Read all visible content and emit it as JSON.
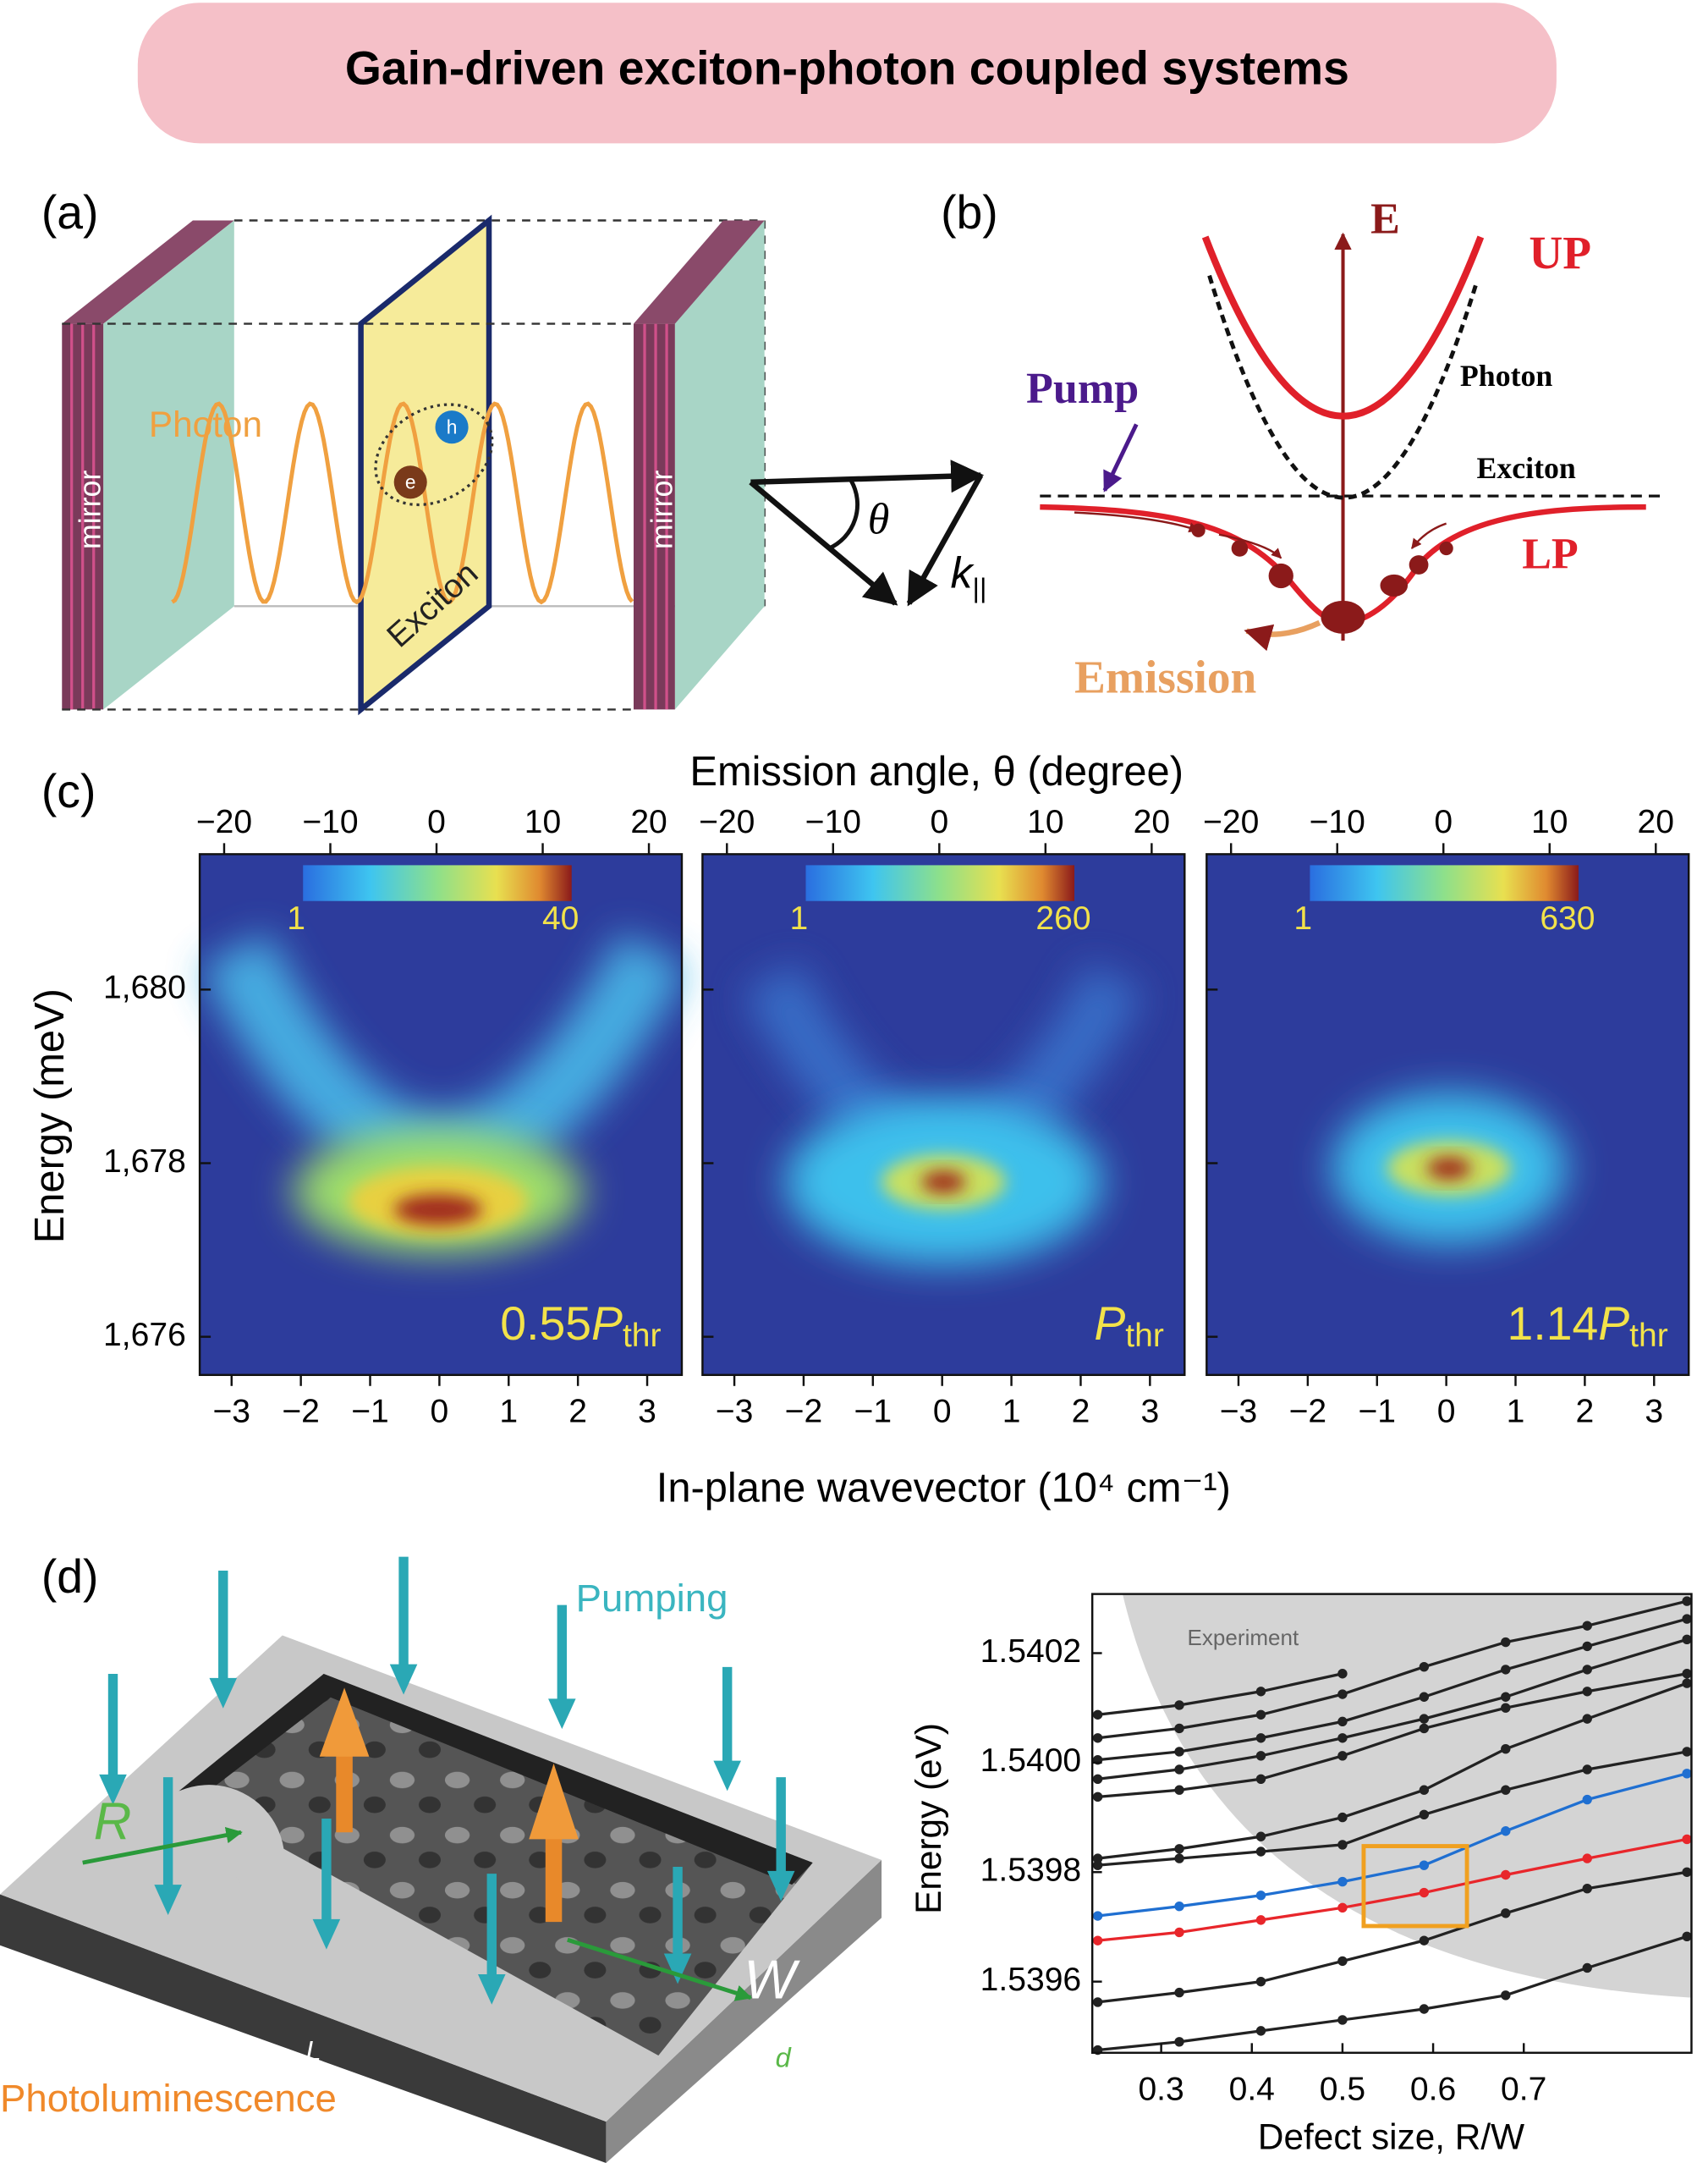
{
  "title": "Gain-driven exciton-photon coupled systems",
  "panel_a": {
    "label": "(a)",
    "photon": "Photon",
    "mirrors": [
      "mirror",
      "mirror"
    ],
    "exciton": "Exciton",
    "electron": "e",
    "hole": "h",
    "angle": "θ",
    "wavevector": "k",
    "wavevector_sub": "||"
  },
  "panel_b": {
    "label": "(b)",
    "axis": "E",
    "upper_polariton": "UP",
    "photon": "Photon",
    "pump": "Pump",
    "exciton": "Exciton",
    "lower_polariton": "LP",
    "emission": "Emission"
  },
  "panel_c": {
    "label": "(c)",
    "top_axis_label": "Emission angle, θ (degree)",
    "x_axis_label": "In-plane wavevector (10⁴ cm⁻¹)",
    "y_axis_label": "Energy (meV)",
    "xlim": [
      -3.46,
      3.5
    ],
    "xticks": [
      {
        "value": -3,
        "label": "−3"
      },
      {
        "value": -2,
        "label": "−2"
      },
      {
        "value": -1,
        "label": "−1"
      },
      0,
      1,
      2,
      3
    ],
    "x2lim": [
      -22.3,
      23.1
    ],
    "x2ticks": [
      {
        "value": -20,
        "label": "−20"
      },
      {
        "value": -10,
        "label": "−10"
      },
      0,
      10,
      20
    ],
    "ylim": [
      1675.56,
      1681.56
    ],
    "yticks": [
      {
        "value": 1676,
        "label": "1,676"
      },
      {
        "value": 1678,
        "label": "1,678"
      },
      {
        "value": 1680,
        "label": "1,680"
      }
    ],
    "maps": [
      {
        "colorbar_min": 1,
        "colorbar_max": 40,
        "power_factor": "0.55",
        "power_symbol": "P",
        "power_subscript": "thr"
      },
      {
        "colorbar_min": 1,
        "colorbar_max": 260,
        "power_symbol": "P",
        "power_subscript": "thr"
      },
      {
        "colorbar_min": 1,
        "colorbar_max": 630,
        "power_factor": "1.14",
        "power_symbol": "P",
        "power_subscript": "thr"
      }
    ]
  },
  "panel_d": {
    "label": "(d)",
    "pumping": "Pumping",
    "photoluminescence": "Photoluminescence",
    "defect_radius": "R",
    "width": "W",
    "length": "L",
    "thickness": "d"
  },
  "chart_data": {
    "type": "line",
    "x_label": "Defect size, R/W",
    "y_label": "Energy (eV)",
    "annotation": "Experiment",
    "x": [
      0.23,
      0.32,
      0.41,
      0.5,
      0.59,
      0.68,
      0.77,
      0.88
    ],
    "xlim": [
      0.224,
      0.885
    ],
    "xticks": [
      0.3,
      0.4,
      0.5,
      0.6,
      0.7
    ],
    "ylim": [
      1.53947,
      1.540308
    ],
    "yticks": [
      1.5396,
      1.5398,
      {
        "value": 1.54,
        "label": "1.5400"
      },
      1.5402
    ],
    "series": [
      {
        "color": "#e8262b",
        "values": [
          1.539675,
          1.53969,
          1.5397125,
          1.539735,
          1.5397625,
          1.539795,
          1.539825,
          1.53986
        ]
      },
      {
        "color": "#1f6fd1",
        "values": [
          1.53972,
          1.5397375,
          1.5397575,
          1.5397825,
          1.5398125,
          1.539875,
          1.5399325,
          1.53998
        ]
      },
      {
        "color": "#222222",
        "values": [
          1.539475,
          1.53949,
          1.53951,
          1.53953,
          1.53955,
          1.539575,
          1.539625,
          1.5396825
        ]
      },
      {
        "color": "#222222",
        "values": [
          1.5395625,
          1.53958,
          1.5396,
          1.5396375,
          1.539675,
          1.539725,
          1.53977,
          1.5398
        ]
      },
      {
        "color": "#222222",
        "values": [
          1.5398125,
          1.539825,
          1.5398375,
          1.53985,
          1.539905,
          1.53995,
          1.5399875,
          1.54002
        ]
      },
      {
        "color": "#222222",
        "values": [
          1.539825,
          1.5398425,
          1.539865,
          1.5399,
          1.53995,
          1.540025,
          1.54008,
          1.540145
        ]
      },
      {
        "color": "#222222",
        "values": [
          1.5399375,
          1.53995,
          1.53997,
          1.5400125,
          1.5400625,
          1.5401,
          1.54013,
          1.5401625
        ]
      },
      {
        "color": "#222222",
        "values": [
          1.53997,
          1.5399875,
          1.5400125,
          1.540045,
          1.54008,
          1.54012,
          1.54017,
          1.540225
        ]
      },
      {
        "color": "#222222",
        "values": [
          1.540005,
          1.54002,
          1.540045,
          1.540075,
          1.54012,
          1.54017,
          1.5402125,
          1.5402625
        ]
      },
      {
        "color": "#222222",
        "values": [
          1.540045,
          1.5400625,
          1.5400875,
          1.540125,
          1.540175,
          1.54022,
          1.54025,
          1.540295
        ]
      },
      {
        "color": "#222222",
        "values": [
          1.5400875,
          1.540105,
          1.54013,
          1.5401625,
          null,
          null,
          null,
          null
        ]
      }
    ]
  }
}
